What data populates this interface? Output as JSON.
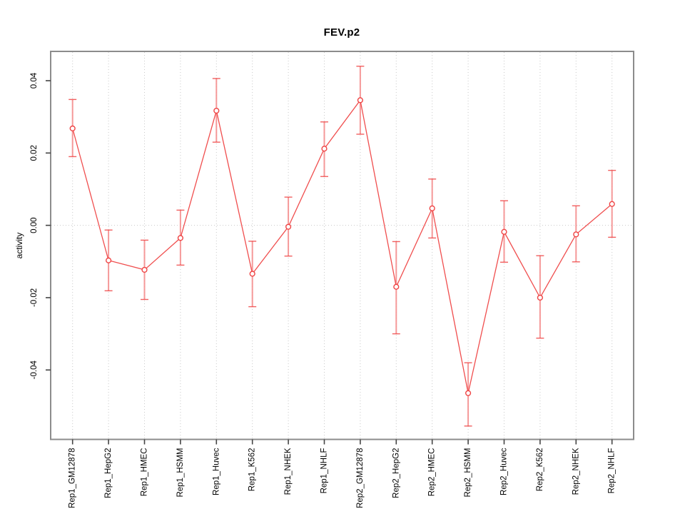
{
  "chart": {
    "title": "FEV.p2",
    "ylabel": "activity"
  },
  "chart_data": {
    "type": "line",
    "title": "FEV.p2",
    "xlabel": "",
    "ylabel": "activity",
    "legend_position": "none",
    "point_style": "open-circle",
    "error_bars": true,
    "grid": "dotted vertical line at each category; dotted horizontal line at y=0",
    "categories": [
      "Rep1_GM12878",
      "Rep1_HepG2",
      "Rep1_HMEC",
      "Rep1_HSMM",
      "Rep1_Huvec",
      "Rep1_K562",
      "Rep1_NHEK",
      "Rep1_NHLF",
      "Rep2_GM12878",
      "Rep2_HepG2",
      "Rep2_HMEC",
      "Rep2_HSMM",
      "Rep2_Huvec",
      "Rep2_K562",
      "Rep2_NHEK",
      "Rep2_NHLF"
    ],
    "series": [
      {
        "name": "activity",
        "values": [
          0.0268,
          -0.0097,
          -0.0123,
          -0.0035,
          0.0317,
          -0.0134,
          -0.0004,
          0.0212,
          0.0346,
          -0.017,
          0.0047,
          -0.0464,
          -0.0018,
          -0.02,
          -0.0025,
          0.0059
        ],
        "lower": [
          0.019,
          -0.0181,
          -0.0205,
          -0.011,
          0.023,
          -0.0225,
          -0.0085,
          0.0135,
          0.0252,
          -0.03,
          -0.0035,
          -0.0555,
          -0.0102,
          -0.0312,
          -0.0101,
          -0.0033
        ],
        "upper": [
          0.0348,
          -0.0013,
          -0.0041,
          0.0042,
          0.0406,
          -0.0044,
          0.0078,
          0.0286,
          0.044,
          -0.0045,
          0.0128,
          -0.038,
          0.0068,
          -0.0084,
          0.0054,
          0.0152
        ]
      }
    ],
    "yticks": [
      -0.04,
      -0.02,
      0,
      0.02,
      0.04
    ],
    "ytick_labels": [
      "-0.04",
      "-0.02",
      "0.00",
      "0.02",
      "0.04"
    ],
    "ylim": [
      -0.0592,
      0.0481
    ],
    "colors": {
      "series": "#ef4444",
      "error_bar": "#f58e8e",
      "grid": "#c9c9c9",
      "frame": "#8c8c8c",
      "tick": "#444444",
      "text": "#000000",
      "background": "#ffffff"
    }
  }
}
